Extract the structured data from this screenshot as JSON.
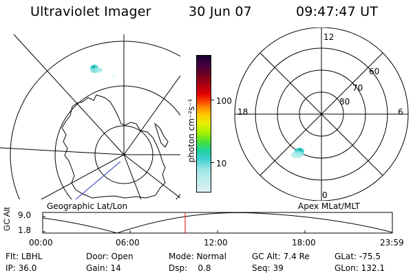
{
  "header": {
    "instrument": "Ultraviolet Imager",
    "date": "30 Jun 07",
    "time": "09:47:47 UT"
  },
  "colorbar": {
    "unit_label": "photon cm⁻²s⁻¹",
    "ticks": [
      "100",
      "10"
    ],
    "colors": [
      "#1a0030",
      "#3c0040",
      "#700020",
      "#b00010",
      "#e00000",
      "#ff3c00",
      "#ff8c00",
      "#ffcc00",
      "#e6f000",
      "#a0f000",
      "#40e040",
      "#20d0a0",
      "#40d0d0",
      "#a0e8e8",
      "#e0f0f0"
    ]
  },
  "left_panel": {
    "caption": "Geographic Lat/Lon"
  },
  "right_panel": {
    "caption": "Apex MLat/MLT",
    "mlt_labels": {
      "top": "12",
      "left": "18",
      "right": "6",
      "bottom": "0"
    },
    "lat_labels": [
      "60",
      "70",
      "80"
    ]
  },
  "altitude_plot": {
    "ylabel": "GC Alt",
    "yticks": [
      "9.0",
      "1.8"
    ],
    "xticks": [
      "00:00",
      "06:00",
      "12:00",
      "18:00",
      "23:59"
    ],
    "current_time_marker": "09:47"
  },
  "info": {
    "row1": [
      {
        "label": "Flt:",
        "value": "LBHL"
      },
      {
        "label": "Door:",
        "value": "Open"
      },
      {
        "label": "Mode:",
        "value": "Normal"
      },
      {
        "label": "GC Alt:",
        "value": "7.4 Re"
      },
      {
        "label": "GLat:",
        "value": "-75.5"
      }
    ],
    "row2": [
      {
        "label": "IP:",
        "value": "36.0"
      },
      {
        "label": "Gain:",
        "value": "14"
      },
      {
        "label": "Dsp:",
        "value": "0.8"
      },
      {
        "label": "Seq:",
        "value": "39"
      },
      {
        "label": "GLon:",
        "value": "132.1"
      }
    ]
  }
}
